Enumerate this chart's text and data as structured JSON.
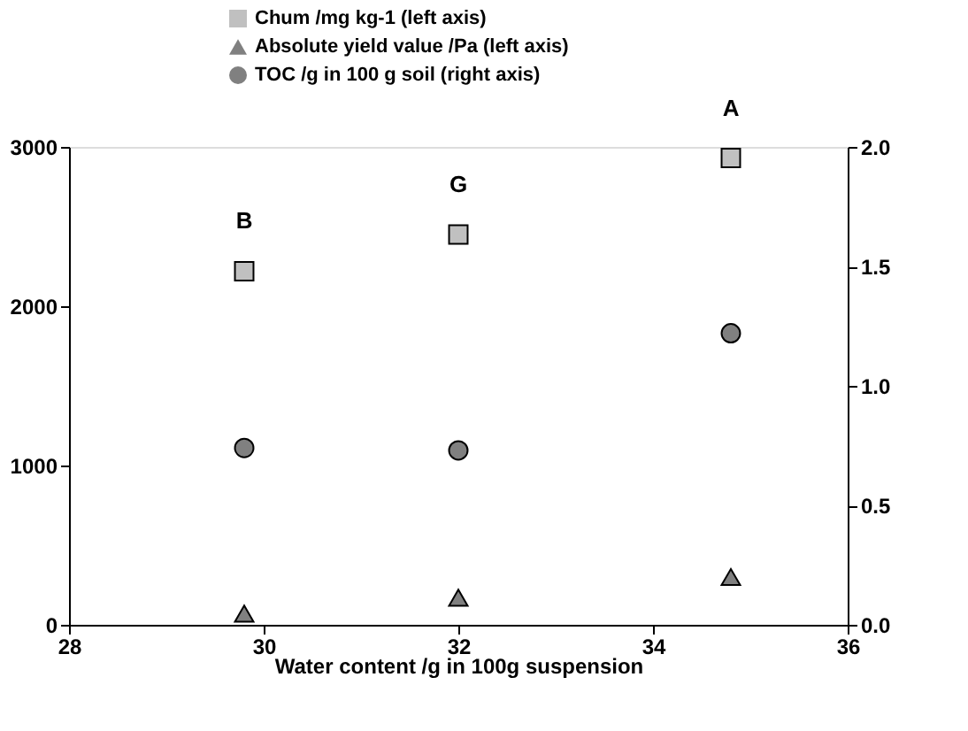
{
  "chart_data": {
    "type": "scatter",
    "xlabel": "Water content /g in 100g suspension",
    "x": [
      29.8,
      32.0,
      34.8
    ],
    "series": [
      {
        "name": "Chum /mg kg-1 (left axis)",
        "color": "#c0c0c0",
        "marker": "square",
        "values": [
          2220,
          2450,
          2930
        ]
      },
      {
        "name": "Absolute yield value /Pa (left axis)",
        "color": "#808080",
        "marker": "triangle",
        "values": [
          70,
          170,
          300
        ]
      },
      {
        "name": "TOC /g in 100 g soil (right axis)",
        "color": "#808080",
        "marker": "circle",
        "axis": "y2",
        "values": [
          0.74,
          0.73,
          1.22
        ]
      }
    ],
    "annotations": [
      "B",
      "G",
      "A"
    ],
    "xlim": [
      28,
      36
    ],
    "xticks": [
      28,
      30,
      32,
      34,
      36
    ],
    "ylim": [
      0,
      3000
    ],
    "yticks": [
      0,
      1000,
      2000,
      3000
    ],
    "y2lim": [
      0,
      2.0
    ],
    "y2ticks": [
      {
        "value": 0,
        "label": "0.0"
      },
      {
        "value": 0.5,
        "label": "0.5"
      },
      {
        "value": 1,
        "label": "1.0"
      },
      {
        "value": 1.5,
        "label": "1.5"
      },
      {
        "value": 2,
        "label": "2.0"
      }
    ],
    "legend": "top",
    "grid": false
  }
}
